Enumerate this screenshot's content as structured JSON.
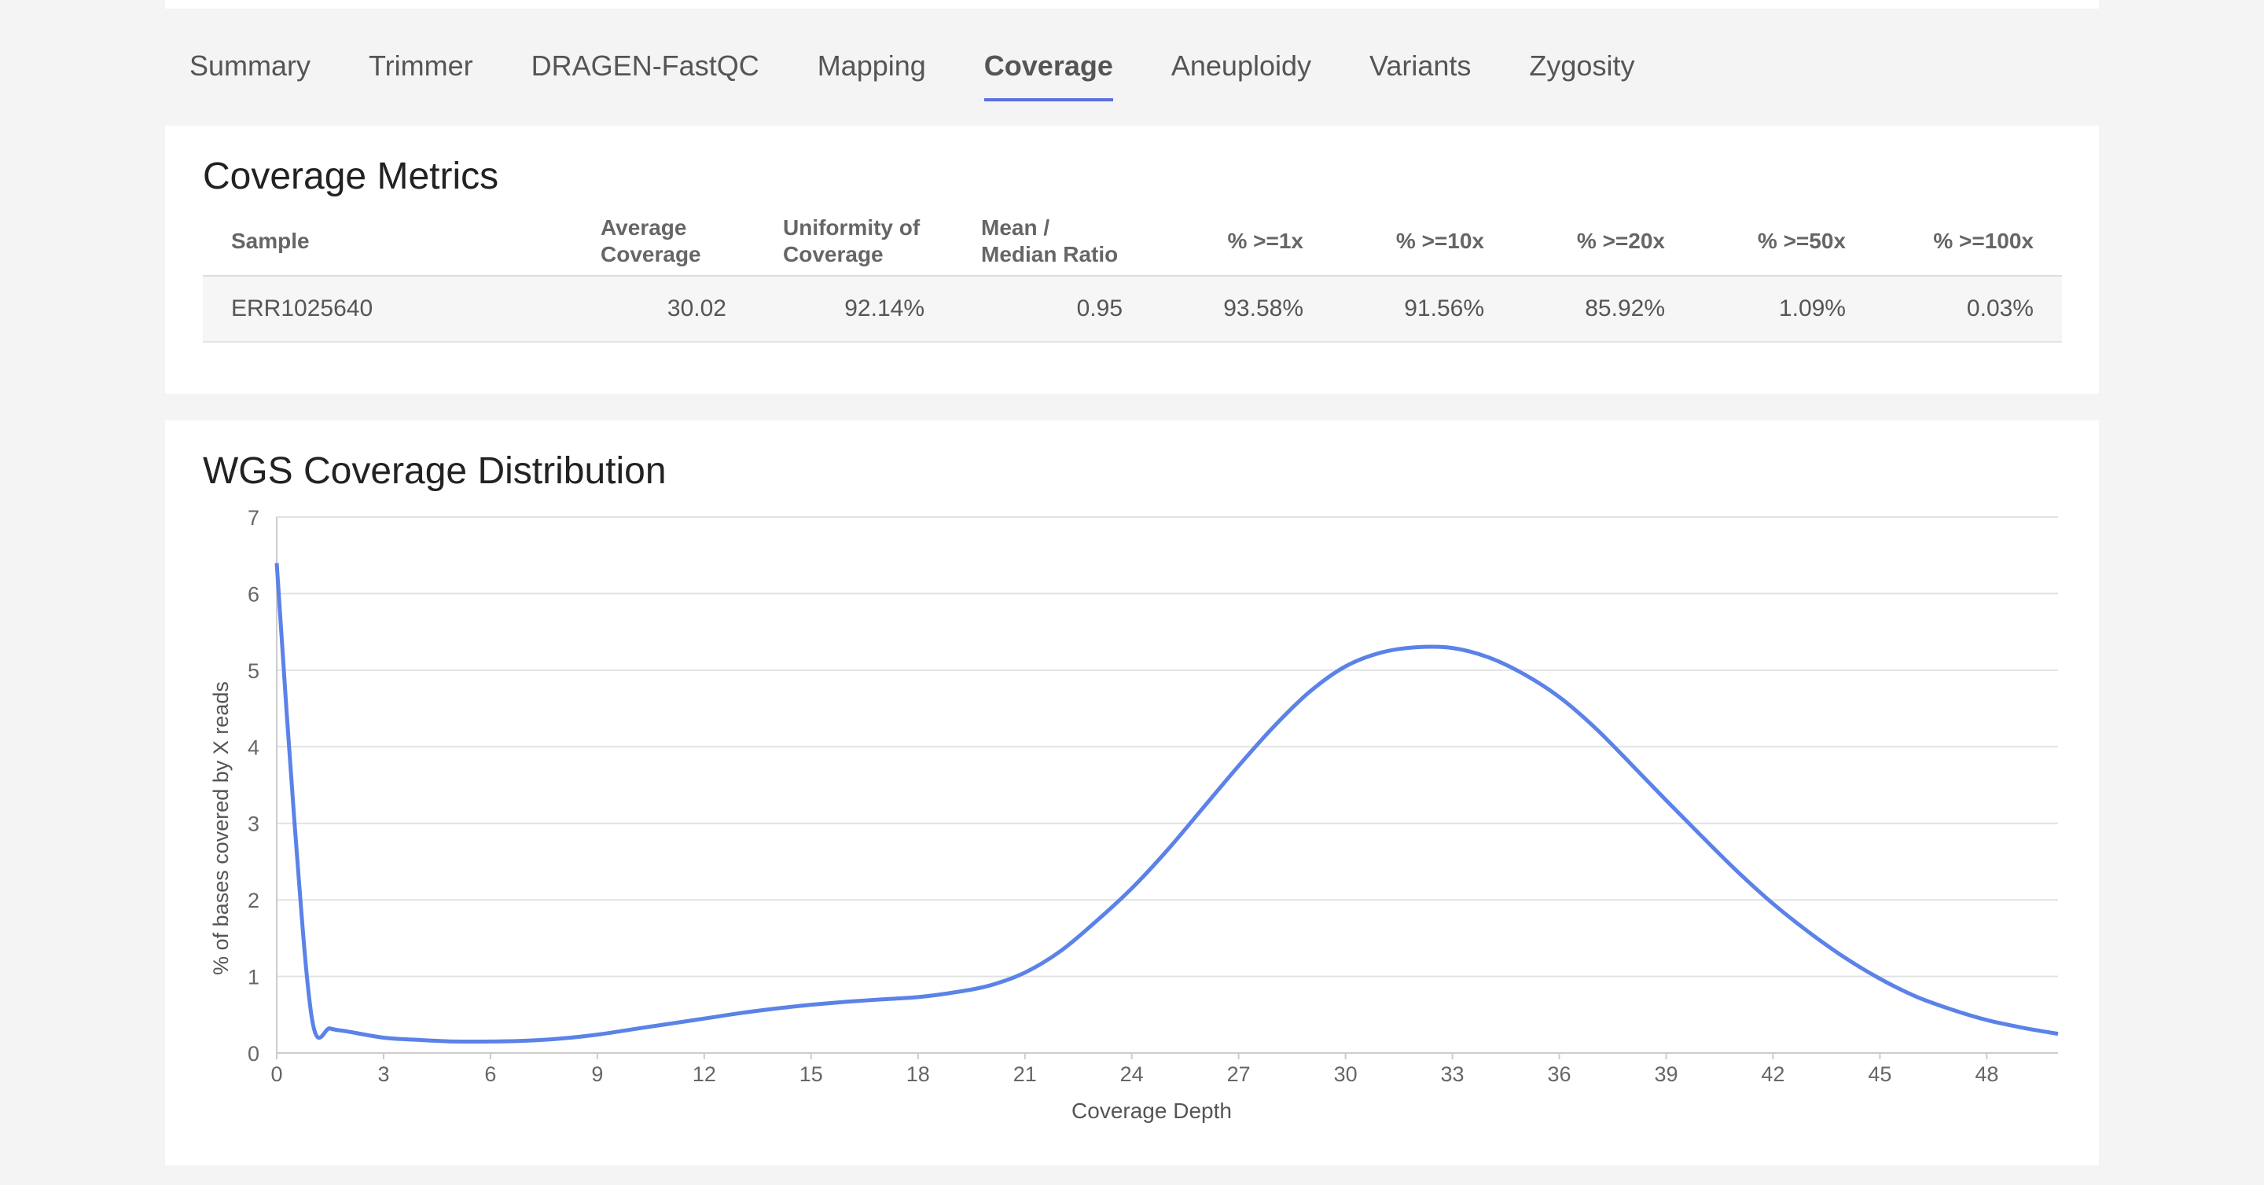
{
  "tabs": [
    {
      "label": "Summary"
    },
    {
      "label": "Trimmer"
    },
    {
      "label": "DRAGEN-FastQC"
    },
    {
      "label": "Mapping"
    },
    {
      "label": "Coverage",
      "active": true
    },
    {
      "label": "Aneuploidy"
    },
    {
      "label": "Variants"
    },
    {
      "label": "Zygosity"
    }
  ],
  "metrics": {
    "title": "Coverage Metrics",
    "headers": {
      "sample": "Sample",
      "avg_cov_1": "Average",
      "avg_cov_2": "Coverage",
      "uniformity_1": "Uniformity of",
      "uniformity_2": "Coverage",
      "ratio_1": "Mean /",
      "ratio_2": "Median Ratio",
      "pct1x": "% >=1x",
      "pct10x": "% >=10x",
      "pct20x": "% >=20x",
      "pct50x": "% >=50x",
      "pct100x": "% >=100x"
    },
    "row": {
      "sample": "ERR1025640",
      "avg_cov": "30.02",
      "uniformity": "92.14%",
      "ratio": "0.95",
      "pct1x": "93.58%",
      "pct10x": "91.56%",
      "pct20x": "85.92%",
      "pct50x": "1.09%",
      "pct100x": "0.03%"
    }
  },
  "chart_data": {
    "type": "line",
    "title": "WGS Coverage Distribution",
    "xlabel": "Coverage Depth",
    "ylabel": "% of bases covered by X reads",
    "xlim": [
      0,
      50
    ],
    "ylim": [
      0,
      7
    ],
    "xticks": [
      "0",
      "3",
      "6",
      "9",
      "12",
      "15",
      "18",
      "21",
      "24",
      "27",
      "30",
      "33",
      "36",
      "39",
      "42",
      "45",
      "48"
    ],
    "yticks": [
      "0",
      "1",
      "2",
      "3",
      "4",
      "5",
      "6",
      "7"
    ],
    "grid": true,
    "color": "#5b82e8",
    "series": [
      {
        "x": [
          0,
          0.5,
          1,
          1.5,
          2,
          3,
          4,
          5,
          6,
          7,
          8,
          9,
          10,
          11,
          12,
          13,
          14,
          15,
          16,
          17,
          18,
          19,
          20,
          21,
          22,
          23,
          24,
          25,
          26,
          27,
          28,
          29,
          30,
          31,
          32,
          33,
          34,
          35,
          36,
          37,
          38,
          39,
          40,
          41,
          42,
          43,
          44,
          45,
          46,
          47,
          48,
          49,
          50
        ],
        "y": [
          6.4,
          3.0,
          0.42,
          0.32,
          0.28,
          0.2,
          0.17,
          0.15,
          0.15,
          0.16,
          0.19,
          0.24,
          0.31,
          0.38,
          0.45,
          0.52,
          0.58,
          0.63,
          0.67,
          0.7,
          0.73,
          0.79,
          0.88,
          1.05,
          1.33,
          1.72,
          2.15,
          2.65,
          3.2,
          3.75,
          4.27,
          4.72,
          5.05,
          5.23,
          5.3,
          5.29,
          5.17,
          4.95,
          4.65,
          4.25,
          3.78,
          3.3,
          2.83,
          2.37,
          1.95,
          1.58,
          1.25,
          0.97,
          0.74,
          0.57,
          0.43,
          0.33,
          0.25
        ]
      }
    ]
  }
}
